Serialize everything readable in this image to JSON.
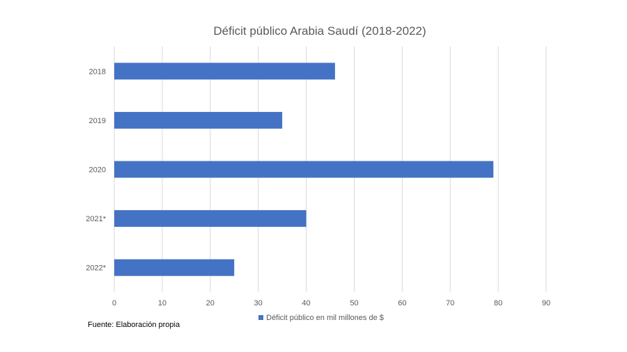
{
  "chart_data": {
    "type": "bar",
    "orientation": "horizontal",
    "title": "Déficit público Arabia Saudí (2018-2022)",
    "categories": [
      "2018",
      "2019",
      "2020",
      "2021*",
      "2022*"
    ],
    "series": [
      {
        "name": "Déficit público en mil millones de $",
        "values": [
          46,
          35,
          79,
          40,
          25
        ],
        "color": "#4472C4"
      }
    ],
    "xlim": [
      0,
      90
    ],
    "xticks": [
      0,
      10,
      20,
      30,
      40,
      50,
      60,
      70,
      80,
      90
    ],
    "grid": true,
    "legend_position": "bottom"
  },
  "source_note": "Fuente: Elaboración propia",
  "colors": {
    "bar": "#4472C4",
    "grid": "#D9D9D9",
    "text": "#595959"
  }
}
